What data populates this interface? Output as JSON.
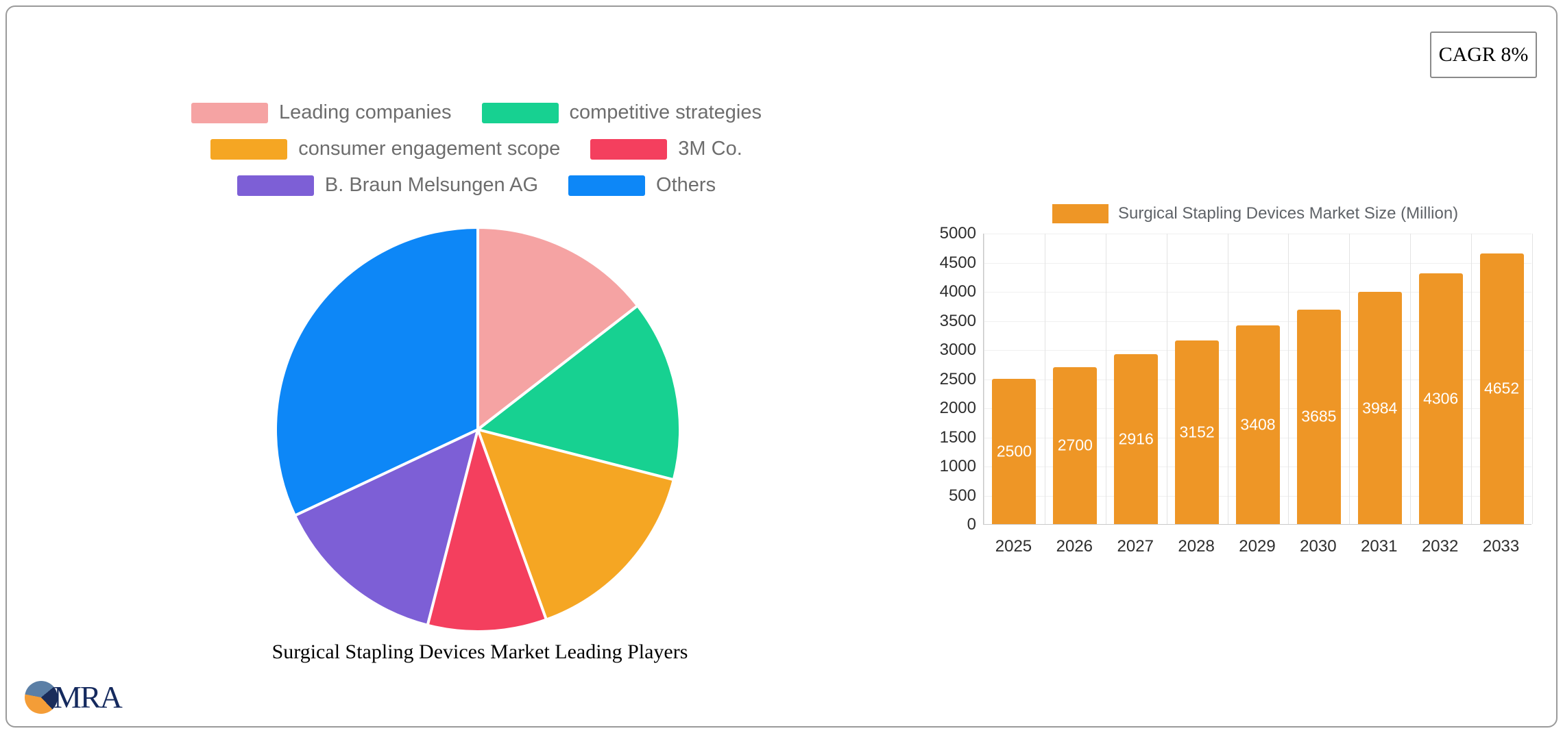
{
  "badge": {
    "cagr": "CAGR 8%"
  },
  "logo": {
    "text": "MRA"
  },
  "chart_data": [
    {
      "type": "pie",
      "title": "Surgical Stapling Devices Market Leading Players",
      "labels": [
        "Leading companies",
        "competitive strategies",
        "consumer engagement scope",
        "3M Co.",
        "B. Braun Melsungen AG",
        "Others"
      ],
      "values": [
        14.5,
        14.5,
        15.5,
        9.5,
        14,
        32
      ],
      "colors": [
        "#f5a3a3",
        "#17d191",
        "#f5a623",
        "#f43f5e",
        "#7d5fd6",
        "#0d87f7"
      ],
      "legend_position": "top",
      "start_angle_deg": 0,
      "direction": "clockwise",
      "units": "percent share (estimated from slice angles)"
    },
    {
      "type": "bar",
      "series_label": "Surgical Stapling Devices Market Size (Million)",
      "categories": [
        "2025",
        "2026",
        "2027",
        "2028",
        "2029",
        "2030",
        "2031",
        "2032",
        "2033"
      ],
      "values": [
        2500,
        2700,
        2916,
        3152,
        3408,
        3685,
        3984,
        4306,
        4652
      ],
      "bar_color": "#ee9626",
      "ylim": [
        0,
        5000
      ],
      "y_tick_step": 500,
      "grid": "vertical",
      "value_labels": "inside bars, white",
      "legend_position": "top"
    }
  ]
}
